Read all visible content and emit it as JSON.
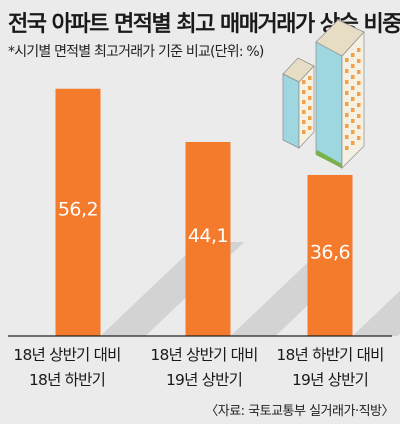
{
  "title": "전국 아파트 면적별 최고 매매거래가 상승 비중",
  "subtitle": "*시기별 면적별 최고거래가 기준 비교(단위: %)",
  "source": "〈자료: 국토교통부 실거래가·직방〉",
  "colors": {
    "bar": "#f47a2c",
    "shadow": "#d3d3d3",
    "background": "#ebebeb"
  },
  "chart_data": {
    "type": "bar",
    "title": "전국 아파트 면적별 최고 매매거래가 상승 비중",
    "subtitle": "*시기별 면적별 최고거래가 기준 비교(단위: %)",
    "unit": "%",
    "categories": [
      "18년 상반기 대비 18년 하반기",
      "18년 상반기 대비 19년 상반기",
      "18년 하반기 대비 19년 상반기"
    ],
    "category_lines": [
      [
        "18년 상반기 대비",
        "18년 하반기"
      ],
      [
        "18년 상반기 대비",
        "19년 상반기"
      ],
      [
        "18년 하반기 대비",
        "19년 상반기"
      ]
    ],
    "values": [
      56.2,
      44.1,
      36.6
    ],
    "value_labels": [
      "56,2",
      "44,1",
      "36,6"
    ],
    "ylim": [
      0,
      60
    ],
    "grid": false,
    "legend": "none"
  }
}
